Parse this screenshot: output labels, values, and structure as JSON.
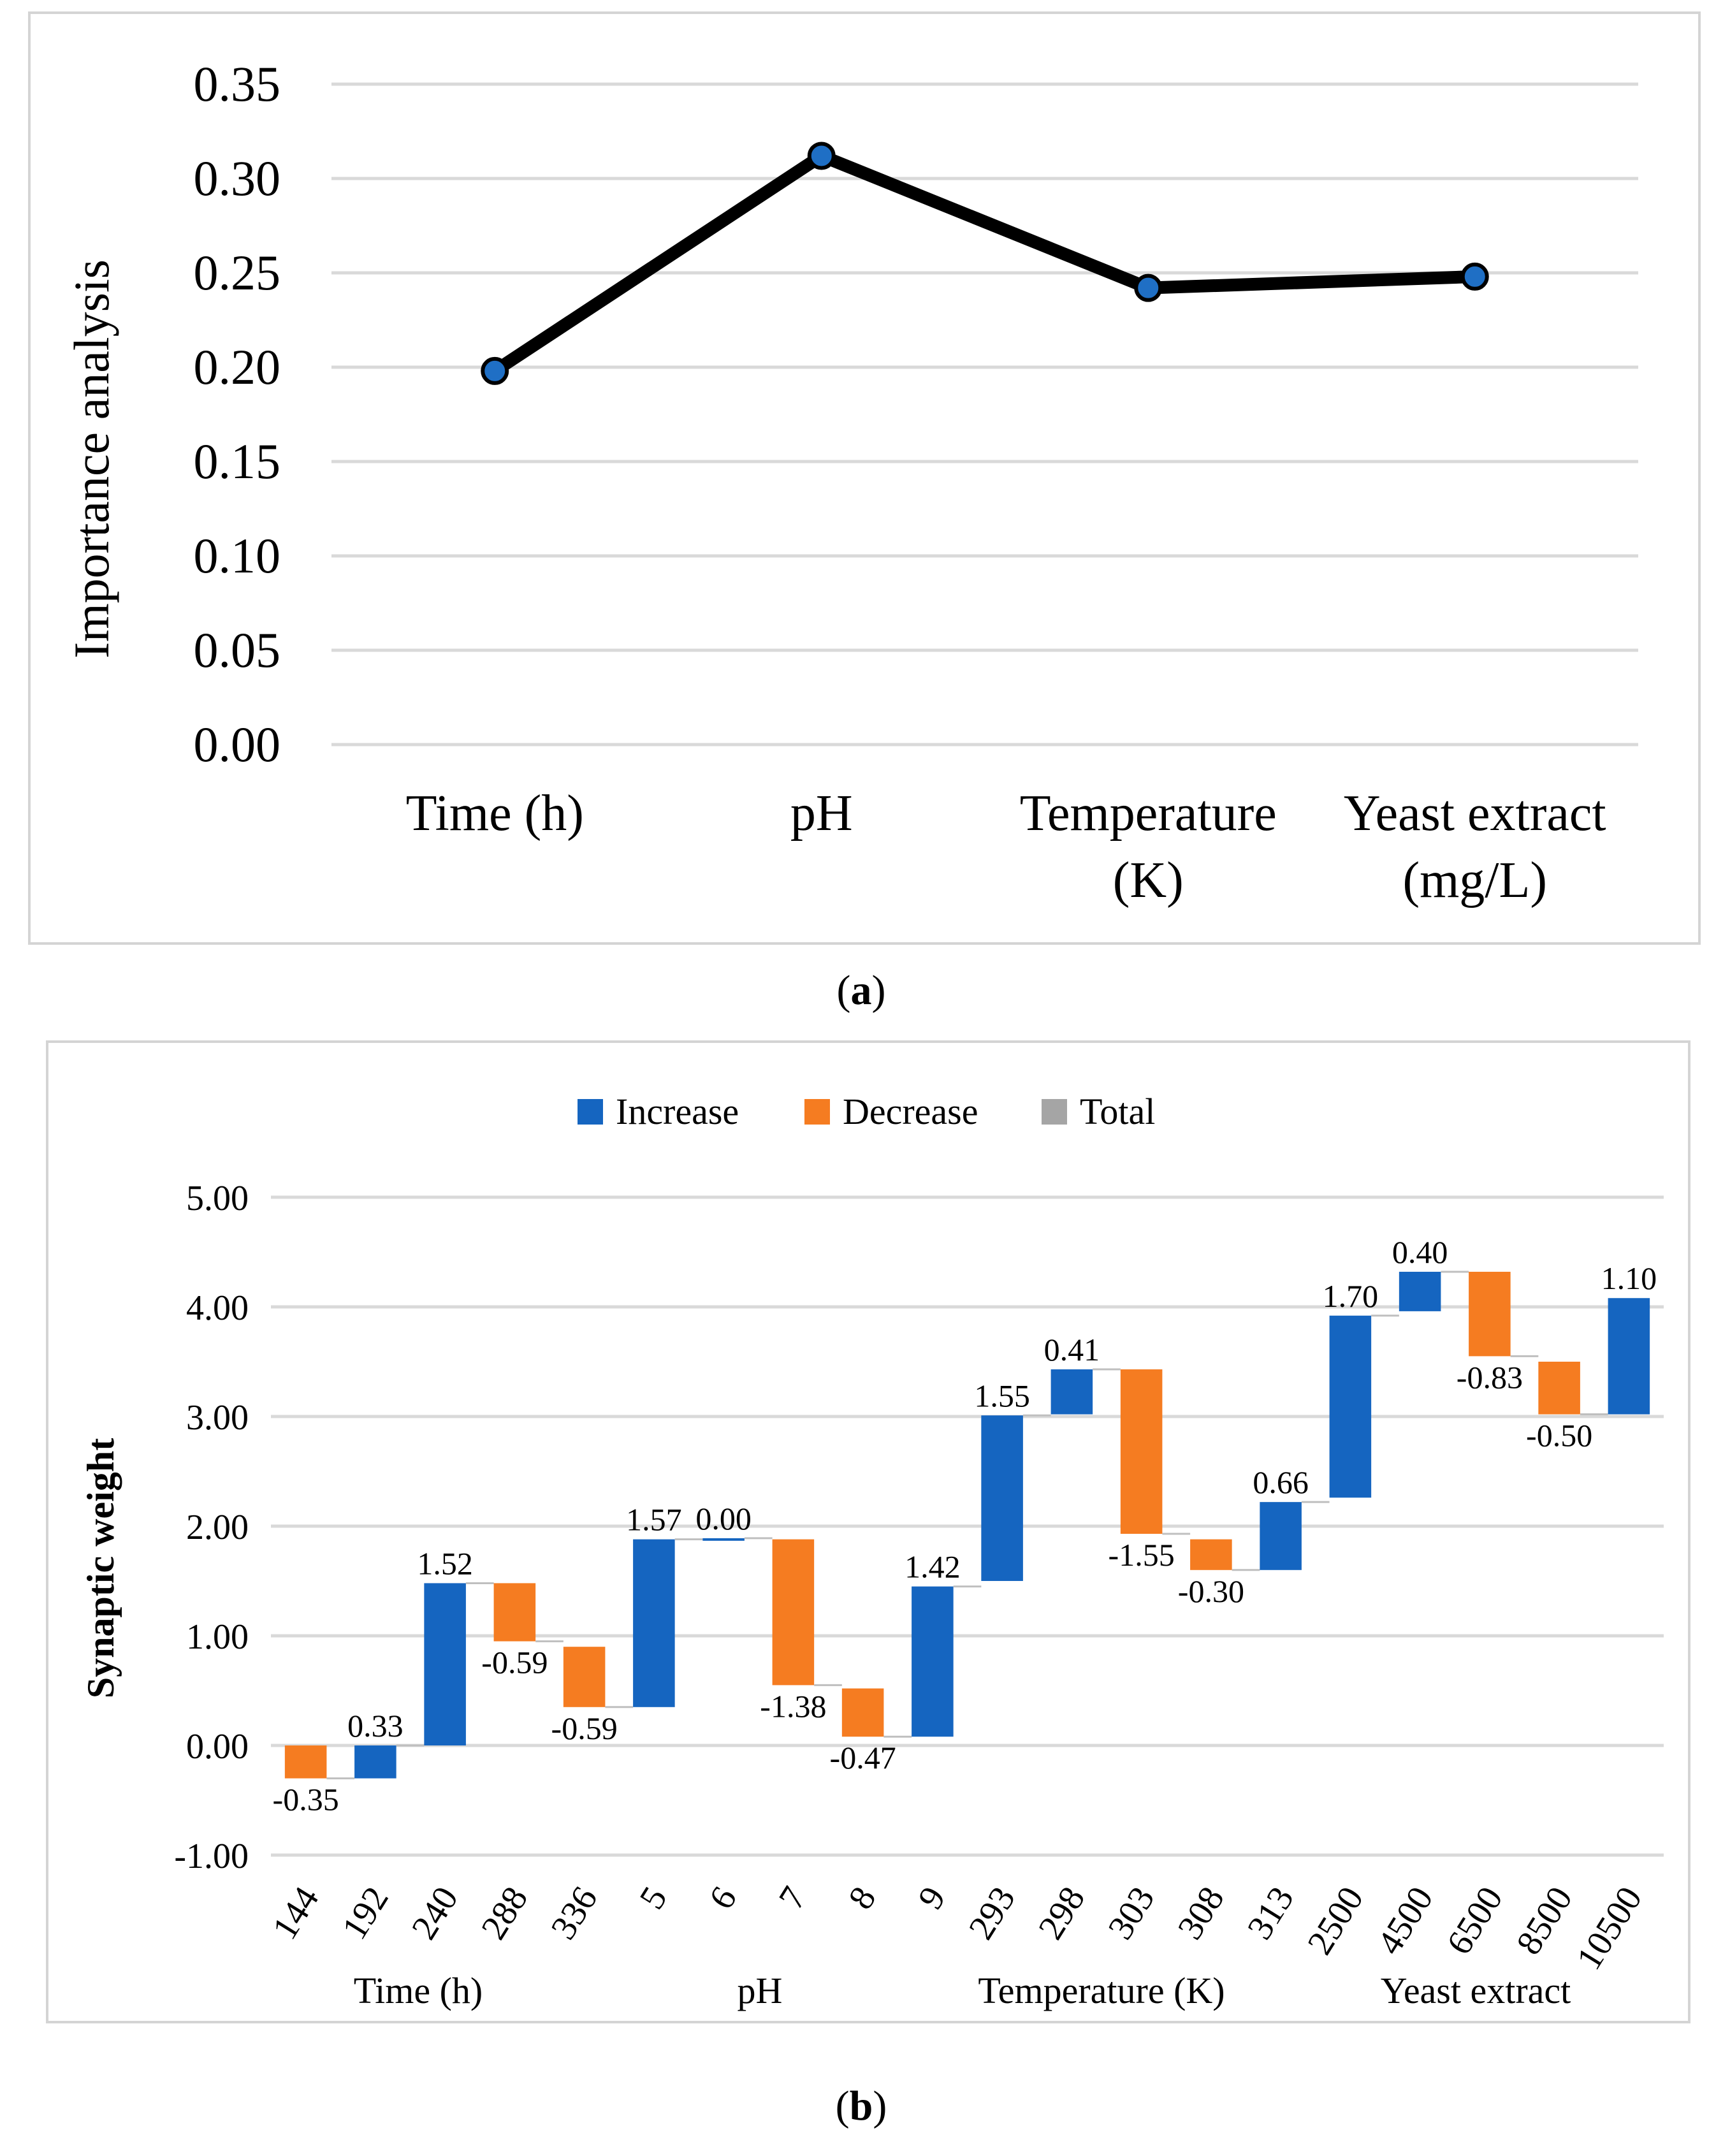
{
  "chart_data": [
    {
      "type": "line",
      "panel_label": "a",
      "ylabel": "Importance analysis",
      "ylim": [
        0,
        0.35
      ],
      "yticks": [
        "0.00",
        "0.05",
        "0.10",
        "0.15",
        "0.20",
        "0.25",
        "0.30",
        "0.35"
      ],
      "categories": [
        [
          "Time (h)"
        ],
        [
          "pH"
        ],
        [
          "Temperature",
          "(K)"
        ],
        [
          "Yeast extract",
          "(mg/L)"
        ]
      ],
      "values": [
        0.198,
        0.312,
        0.242,
        0.248
      ],
      "line_color": "#000000",
      "marker_color": "#1f6fc5"
    },
    {
      "type": "bar",
      "subtype": "waterfall",
      "panel_label": "b",
      "ylabel": "Synaptic weight",
      "ylim": [
        -1,
        5
      ],
      "yticks": [
        "-1.00",
        "0.00",
        "1.00",
        "2.00",
        "3.00",
        "4.00",
        "5.00"
      ],
      "legend": [
        "Increase",
        "Decrease",
        "Total"
      ],
      "legend_position": "top",
      "colors": {
        "Increase": "#1565c0",
        "Decrease": "#f57c21",
        "Total": "#a5a5a5"
      },
      "categories": [
        "144",
        "192",
        "240",
        "288",
        "336",
        "5",
        "6",
        "7",
        "8",
        "9",
        "293",
        "298",
        "303",
        "308",
        "313",
        "2500",
        "4500",
        "6500",
        "8500",
        "10500"
      ],
      "groups": [
        "Time (h)",
        "pH",
        "Temperature (K)",
        "Yeast extract"
      ],
      "bars": [
        {
          "start": 0.0,
          "end": -0.3,
          "kind": "Decrease",
          "label": "-0.35"
        },
        {
          "start": -0.3,
          "end": 0.0,
          "kind": "Increase",
          "label": "0.33"
        },
        {
          "start": 0.0,
          "end": 1.48,
          "kind": "Increase",
          "label": "1.52"
        },
        {
          "start": 1.48,
          "end": 0.95,
          "kind": "Decrease",
          "label": "-0.59"
        },
        {
          "start": 0.9,
          "end": 0.35,
          "kind": "Decrease",
          "label": "-0.59"
        },
        {
          "start": 0.35,
          "end": 1.88,
          "kind": "Increase",
          "label": "1.57"
        },
        {
          "start": 1.88,
          "end": 1.89,
          "kind": "Increase",
          "label": "0.00"
        },
        {
          "start": 1.88,
          "end": 0.55,
          "kind": "Decrease",
          "label": "-1.38"
        },
        {
          "start": 0.52,
          "end": 0.08,
          "kind": "Decrease",
          "label": "-0.47"
        },
        {
          "start": 0.08,
          "end": 1.45,
          "kind": "Increase",
          "label": "1.42"
        },
        {
          "start": 1.5,
          "end": 3.01,
          "kind": "Increase",
          "label": "1.55"
        },
        {
          "start": 3.02,
          "end": 3.43,
          "kind": "Increase",
          "label": "0.41"
        },
        {
          "start": 3.43,
          "end": 1.93,
          "kind": "Decrease",
          "label": "-1.55"
        },
        {
          "start": 1.88,
          "end": 1.6,
          "kind": "Decrease",
          "label": "-0.30"
        },
        {
          "start": 1.6,
          "end": 2.22,
          "kind": "Increase",
          "label": "0.66"
        },
        {
          "start": 2.26,
          "end": 3.92,
          "kind": "Increase",
          "label": "1.70"
        },
        {
          "start": 3.96,
          "end": 4.32,
          "kind": "Increase",
          "label": "0.40"
        },
        {
          "start": 4.32,
          "end": 3.55,
          "kind": "Decrease",
          "label": "-0.83"
        },
        {
          "start": 3.5,
          "end": 3.02,
          "kind": "Decrease",
          "label": "-0.50"
        },
        {
          "start": 3.02,
          "end": 4.08,
          "kind": "Increase",
          "label": "1.10"
        }
      ]
    }
  ],
  "captions": {
    "a": "a",
    "b": "b"
  }
}
